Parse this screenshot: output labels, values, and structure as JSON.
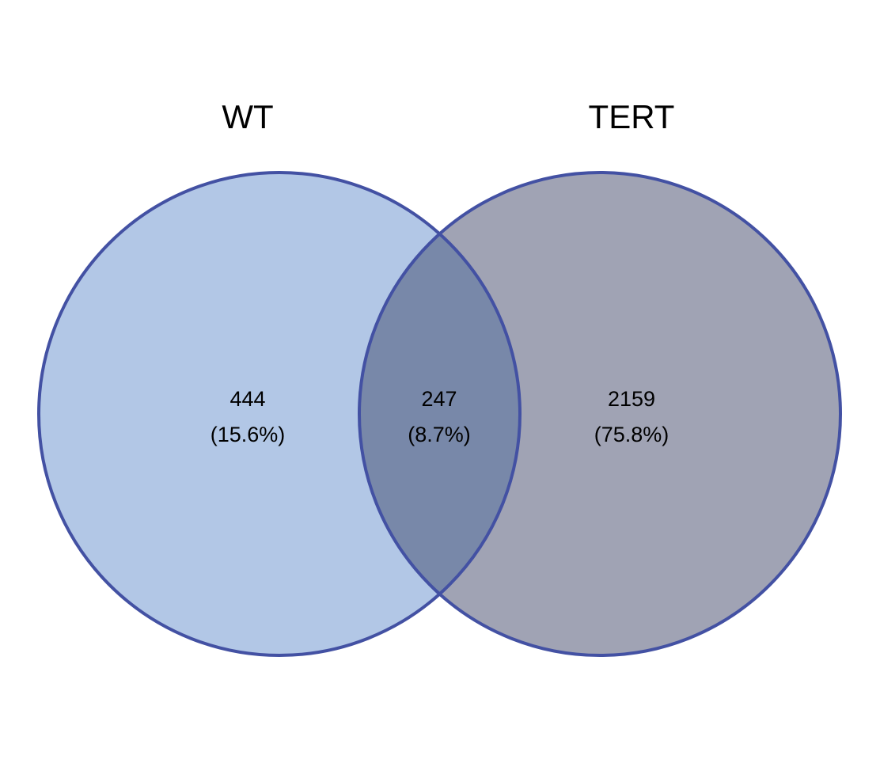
{
  "diagram": {
    "type": "venn",
    "sets": [
      {
        "label": "WT",
        "fill": "#b2c7e6",
        "stroke": "#4351a3"
      },
      {
        "label": "TERT",
        "fill": "#a0a3b4",
        "stroke": "#4351a3"
      }
    ],
    "overlap_fill": "#7888a9",
    "regions": [
      {
        "name": "WT only",
        "count": "444",
        "percent": "(15.6%)"
      },
      {
        "name": "WT and TERT",
        "count": "247",
        "percent": "(8.7%)"
      },
      {
        "name": "TERT only",
        "count": "2159",
        "percent": "(75.8%)"
      }
    ]
  }
}
